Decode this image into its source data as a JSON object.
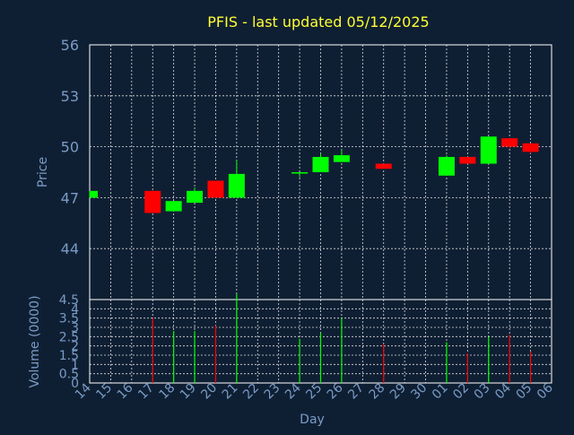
{
  "chart_data": {
    "type": "candlestick",
    "title": "PFIS - last updated 05/12/2025",
    "ylabel": "Price",
    "ylabel_volume": "Volume (0000)",
    "xlabel": "Day",
    "colors": {
      "background": "#0f1f33",
      "up": "#00ff00",
      "down": "#ff0000",
      "title": "#ffff33",
      "axis_text": "#7a9cc6",
      "grid": "#ffffff"
    },
    "grid": true,
    "price_ylim": [
      41,
      56
    ],
    "price_ticks": [
      "56",
      "53",
      "50",
      "47",
      "44"
    ],
    "volume_ylim": [
      0,
      4.5
    ],
    "volume_ticks": [
      "4.5",
      "4",
      "3.5",
      "3",
      "2.5",
      "2",
      "1.5",
      "1",
      "0.5",
      "0"
    ],
    "x_labels": [
      "14",
      "15",
      "16",
      "17",
      "18",
      "19",
      "20",
      "21",
      "22",
      "23",
      "24",
      "25",
      "26",
      "27",
      "28",
      "29",
      "30",
      "01",
      "02",
      "03",
      "04",
      "05",
      "06"
    ],
    "candles": [
      {
        "day": "14",
        "open": 47.0,
        "close": 47.4,
        "high": 47.4,
        "low": 47.0,
        "volume": 0.0
      },
      {
        "day": "17",
        "open": 47.4,
        "close": 46.1,
        "high": 47.4,
        "low": 46.1,
        "volume": 3.5
      },
      {
        "day": "18",
        "open": 46.2,
        "close": 46.8,
        "high": 46.8,
        "low": 46.2,
        "volume": 2.8
      },
      {
        "day": "19",
        "open": 46.7,
        "close": 47.4,
        "high": 47.6,
        "low": 46.7,
        "volume": 2.8
      },
      {
        "day": "20",
        "open": 48.0,
        "close": 47.0,
        "high": 48.0,
        "low": 47.0,
        "volume": 3.1
      },
      {
        "day": "21",
        "open": 47.0,
        "close": 48.4,
        "high": 49.2,
        "low": 47.0,
        "volume": 4.8
      },
      {
        "day": "24",
        "open": 48.5,
        "close": 48.5,
        "high": 48.5,
        "low": 48.2,
        "volume": 2.4
      },
      {
        "day": "25",
        "open": 48.5,
        "close": 49.4,
        "high": 49.6,
        "low": 48.5,
        "volume": 2.7
      },
      {
        "day": "26",
        "open": 49.1,
        "close": 49.5,
        "high": 49.8,
        "low": 49.1,
        "volume": 3.5
      },
      {
        "day": "28",
        "open": 49.0,
        "close": 48.7,
        "high": 49.0,
        "low": 48.7,
        "volume": 2.1
      },
      {
        "day": "01",
        "open": 48.3,
        "close": 49.4,
        "high": 49.5,
        "low": 48.3,
        "volume": 2.2
      },
      {
        "day": "02",
        "open": 49.4,
        "close": 49.0,
        "high": 49.4,
        "low": 49.0,
        "volume": 1.6
      },
      {
        "day": "03",
        "open": 49.0,
        "close": 50.6,
        "high": 50.6,
        "low": 49.0,
        "volume": 2.5
      },
      {
        "day": "04",
        "open": 50.5,
        "close": 50.0,
        "high": 50.5,
        "low": 49.9,
        "volume": 2.6
      },
      {
        "day": "05",
        "open": 50.2,
        "close": 49.7,
        "high": 50.2,
        "low": 49.6,
        "volume": 1.7
      }
    ]
  }
}
